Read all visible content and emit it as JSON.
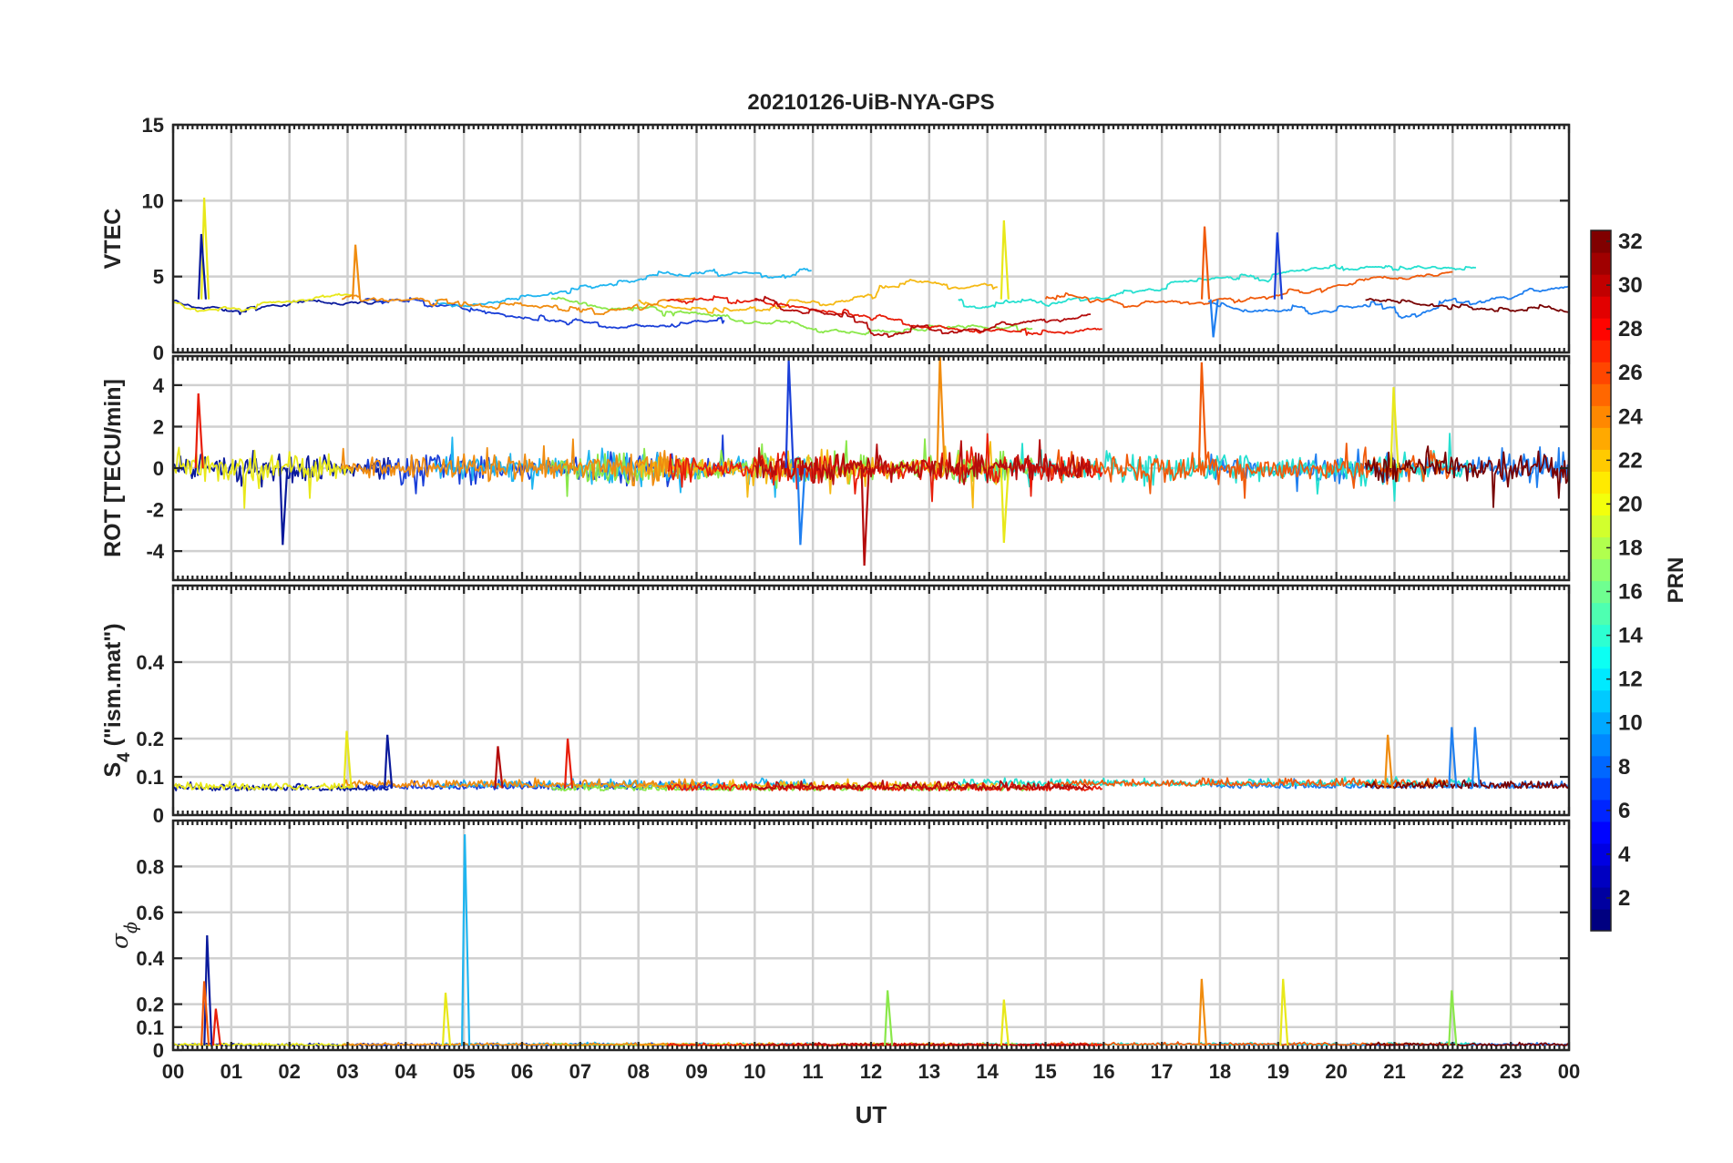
{
  "chart_data": {
    "title": "20210126-UiB-NYA-GPS",
    "type": "line",
    "xlabel": "UT",
    "x_ticks": [
      "00",
      "01",
      "02",
      "03",
      "04",
      "05",
      "06",
      "07",
      "08",
      "09",
      "10",
      "11",
      "12",
      "13",
      "14",
      "15",
      "16",
      "17",
      "18",
      "19",
      "20",
      "21",
      "22",
      "23",
      "00"
    ],
    "xlim_hours": [
      0,
      24
    ],
    "grid": true,
    "panels": [
      {
        "ylabel": "VTEC",
        "ylim": [
          0,
          15
        ],
        "yticks": [
          0,
          5,
          10,
          15
        ],
        "ytick_labels": [
          "0",
          "5",
          "10",
          "15"
        ],
        "baseline": 3.5,
        "spread": 1.1,
        "noise": 0.25
      },
      {
        "ylabel": "ROT [TECU/min]",
        "ylim": [
          -5.4,
          5.4
        ],
        "yticks": [
          -4,
          -2,
          0,
          2,
          4
        ],
        "ytick_labels": [
          "-4",
          "-2",
          "0",
          "2",
          "4"
        ],
        "baseline": 0,
        "spread": 0,
        "noise": 0.35
      },
      {
        "ylabel_main": "S",
        "ylabel_sub": "4",
        "ylabel_tail": " (\"ism.mat\")",
        "ylim": [
          0,
          0.6
        ],
        "yticks": [
          0,
          0.1,
          0.2,
          0.4
        ],
        "ytick_labels": [
          "0",
          "0.1",
          "0.2",
          "0.4"
        ],
        "baseline": 0.07,
        "spread": 0.02,
        "noise": 0.015
      },
      {
        "ylabel_main": "σ",
        "ylabel_sub": "ϕ",
        "ylim": [
          0,
          1
        ],
        "yticks": [
          0,
          0.1,
          0.2,
          0.4,
          0.6,
          0.8
        ],
        "ytick_labels": [
          "0",
          "0.1",
          "0.2",
          "0.4",
          "0.6",
          "0.8"
        ],
        "baseline": 0.02,
        "spread": 0.005,
        "noise": 0.008
      }
    ],
    "series": [
      {
        "name": "PRN 2",
        "prn": 2,
        "color": "#0a1a9c",
        "window": [
          0.0,
          3.7
        ]
      },
      {
        "name": "PRN 5",
        "prn": 5,
        "color": "#1a3fd8",
        "window": [
          3.3,
          9.5
        ]
      },
      {
        "name": "PRN 8",
        "prn": 8,
        "color": "#1f7ff0",
        "window": [
          17.8,
          24.0
        ]
      },
      {
        "name": "PRN 11",
        "prn": 11,
        "color": "#1fb5f0",
        "window": [
          4.5,
          11.0
        ]
      },
      {
        "name": "PRN 14",
        "prn": 14,
        "color": "#25e0d0",
        "window": [
          13.5,
          22.4
        ]
      },
      {
        "name": "PRN 17",
        "prn": 17,
        "color": "#8ae84a",
        "window": [
          6.5,
          14.8
        ]
      },
      {
        "name": "PRN 20",
        "prn": 20,
        "color": "#e8e81a",
        "window": [
          0.0,
          3.1
        ]
      },
      {
        "name": "PRN 22",
        "prn": 22,
        "color": "#f5b914",
        "window": [
          8.0,
          14.2
        ]
      },
      {
        "name": "PRN 24",
        "prn": 24,
        "color": "#f08c0f",
        "window": [
          2.9,
          9.0
        ]
      },
      {
        "name": "PRN 26",
        "prn": 26,
        "color": "#f05a0a",
        "window": [
          15.0,
          22.0
        ]
      },
      {
        "name": "PRN 28",
        "prn": 28,
        "color": "#e81e0a",
        "window": [
          8.5,
          16.0
        ]
      },
      {
        "name": "PRN 30",
        "prn": 30,
        "color": "#b40c0c",
        "window": [
          10.0,
          15.8
        ]
      },
      {
        "name": "PRN 32",
        "prn": 32,
        "color": "#780000",
        "window": [
          20.5,
          24.0
        ]
      }
    ],
    "peaks": [
      {
        "panel": 0,
        "prn": 20,
        "hour": 0.55,
        "value": 10.2
      },
      {
        "panel": 0,
        "prn": 2,
        "hour": 0.5,
        "value": 7.8
      },
      {
        "panel": 0,
        "prn": 24,
        "hour": 3.15,
        "value": 7.1
      },
      {
        "panel": 0,
        "prn": 26,
        "hour": 17.75,
        "value": 8.3
      },
      {
        "panel": 0,
        "prn": 5,
        "hour": 19.0,
        "value": 7.9
      },
      {
        "panel": 0,
        "prn": 20,
        "hour": 14.3,
        "value": 8.7
      },
      {
        "panel": 0,
        "prn": 8,
        "hour": 17.9,
        "value": 1.0
      },
      {
        "panel": 1,
        "prn": 5,
        "hour": 10.6,
        "value": 5.2
      },
      {
        "panel": 1,
        "prn": 30,
        "hour": 11.9,
        "value": -4.7
      },
      {
        "panel": 1,
        "prn": 24,
        "hour": 13.2,
        "value": 5.4
      },
      {
        "panel": 1,
        "prn": 26,
        "hour": 17.7,
        "value": 5.1
      },
      {
        "panel": 1,
        "prn": 28,
        "hour": 0.45,
        "value": 3.6
      },
      {
        "panel": 1,
        "prn": 20,
        "hour": 14.3,
        "value": -3.6
      },
      {
        "panel": 1,
        "prn": 8,
        "hour": 10.8,
        "value": -3.7
      },
      {
        "panel": 1,
        "prn": 20,
        "hour": 21.0,
        "value": 3.9
      },
      {
        "panel": 1,
        "prn": 2,
        "hour": 1.9,
        "value": -3.7
      },
      {
        "panel": 2,
        "prn": 2,
        "hour": 3.7,
        "value": 0.21
      },
      {
        "panel": 2,
        "prn": 20,
        "hour": 3.0,
        "value": 0.22
      },
      {
        "panel": 2,
        "prn": 8,
        "hour": 22.0,
        "value": 0.23
      },
      {
        "panel": 2,
        "prn": 8,
        "hour": 22.4,
        "value": 0.23
      },
      {
        "panel": 2,
        "prn": 24,
        "hour": 20.9,
        "value": 0.21
      },
      {
        "panel": 2,
        "prn": 28,
        "hour": 6.8,
        "value": 0.2
      },
      {
        "panel": 2,
        "prn": 30,
        "hour": 5.6,
        "value": 0.18
      },
      {
        "panel": 3,
        "prn": 11,
        "hour": 5.03,
        "value": 0.94
      },
      {
        "panel": 3,
        "prn": 2,
        "hour": 0.6,
        "value": 0.5
      },
      {
        "panel": 3,
        "prn": 20,
        "hour": 4.7,
        "value": 0.25
      },
      {
        "panel": 3,
        "prn": 26,
        "hour": 0.55,
        "value": 0.3
      },
      {
        "panel": 3,
        "prn": 24,
        "hour": 17.7,
        "value": 0.31
      },
      {
        "panel": 3,
        "prn": 20,
        "hour": 19.1,
        "value": 0.31
      },
      {
        "panel": 3,
        "prn": 17,
        "hour": 12.3,
        "value": 0.26
      },
      {
        "panel": 3,
        "prn": 17,
        "hour": 22.0,
        "value": 0.26
      },
      {
        "panel": 3,
        "prn": 20,
        "hour": 14.3,
        "value": 0.22
      },
      {
        "panel": 3,
        "prn": 28,
        "hour": 0.75,
        "value": 0.18
      }
    ],
    "colorbar": {
      "label": "PRN",
      "range": [
        1,
        32
      ],
      "ticks": [
        2,
        4,
        6,
        8,
        10,
        12,
        14,
        16,
        18,
        20,
        22,
        24,
        26,
        28,
        30,
        32
      ],
      "colormap": "jet",
      "placement": "right"
    }
  }
}
